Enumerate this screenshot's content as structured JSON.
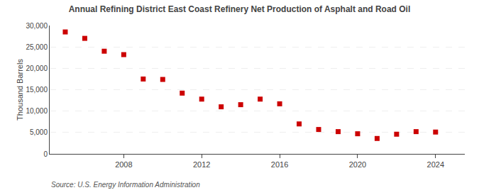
{
  "chart_data": {
    "type": "scatter",
    "title": "Annual Refining District East Coast Refinery Net Production of Asphalt and Road Oil",
    "ylabel": "Thousand Barrels",
    "source": "Source: U.S. Energy Information Administration",
    "x": [
      2005,
      2006,
      2007,
      2008,
      2009,
      2010,
      2011,
      2012,
      2013,
      2014,
      2015,
      2016,
      2017,
      2018,
      2019,
      2020,
      2021,
      2022,
      2023,
      2024
    ],
    "values": [
      28500,
      27000,
      24000,
      23200,
      17500,
      17400,
      14200,
      12800,
      11000,
      11500,
      12800,
      11700,
      7000,
      5700,
      5200,
      4700,
      3600,
      4600,
      5200,
      5100
    ],
    "color": "#cc0000",
    "marker": "square",
    "xlim": [
      2004.2,
      2025.5
    ],
    "xticks": [
      2008,
      2012,
      2016,
      2020,
      2024
    ],
    "ylim": [
      0,
      30000
    ],
    "yticks": [
      0,
      {
        "value": 5000,
        "label": "5,000"
      },
      {
        "value": 10000,
        "label": "10,000"
      },
      {
        "value": 15000,
        "label": "15,000"
      },
      {
        "value": 20000,
        "label": "20,000"
      },
      {
        "value": 25000,
        "label": "25,000"
      },
      {
        "value": 30000,
        "label": "30,000"
      }
    ],
    "grid": true
  }
}
